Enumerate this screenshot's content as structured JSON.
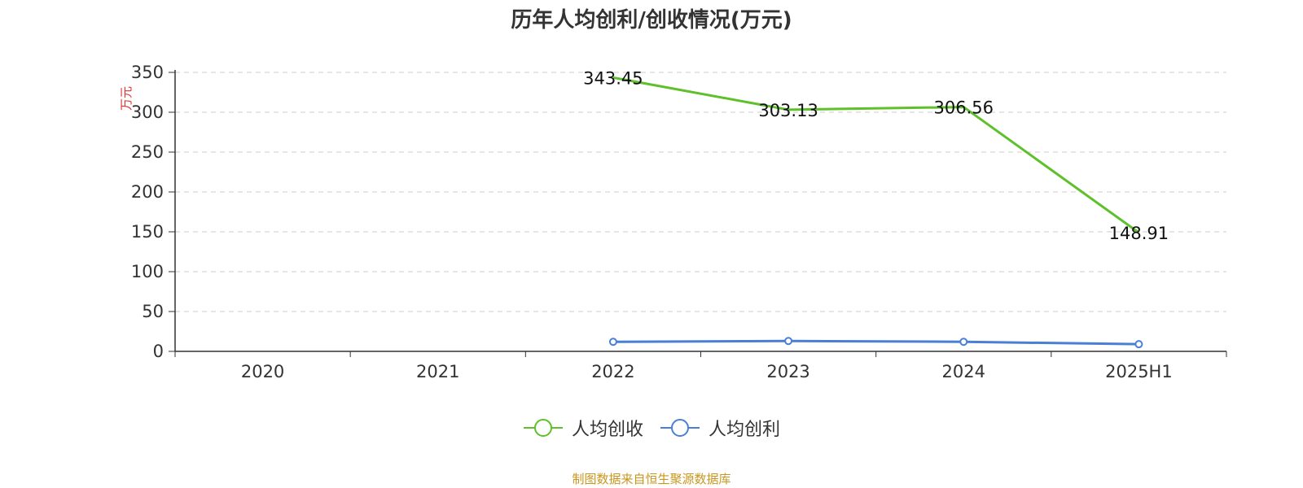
{
  "source_note": "制图数据来自恒生聚源数据库",
  "chart_data": {
    "type": "line",
    "title": "历年人均创利/创收情况(万元)",
    "ylabel": "万元",
    "xlabel": "",
    "categories": [
      "2020",
      "2021",
      "2022",
      "2023",
      "2024",
      "2025H1"
    ],
    "ylim": [
      0,
      350
    ],
    "yticks": [
      0,
      50,
      100,
      150,
      200,
      250,
      300,
      350
    ],
    "grid": true,
    "legend_position": "bottom",
    "series": [
      {
        "name": "人均创收",
        "color": "#5ec02a",
        "values": [
          null,
          null,
          343.45,
          303.13,
          306.56,
          148.91
        ],
        "labels": [
          "",
          "",
          "343.45",
          "303.13",
          "306.56",
          "148.91"
        ],
        "show_markers": false
      },
      {
        "name": "人均创利",
        "color": "#4a7fd8",
        "values": [
          null,
          null,
          12.0,
          13.0,
          12.0,
          9.0
        ],
        "show_markers": true
      }
    ]
  }
}
